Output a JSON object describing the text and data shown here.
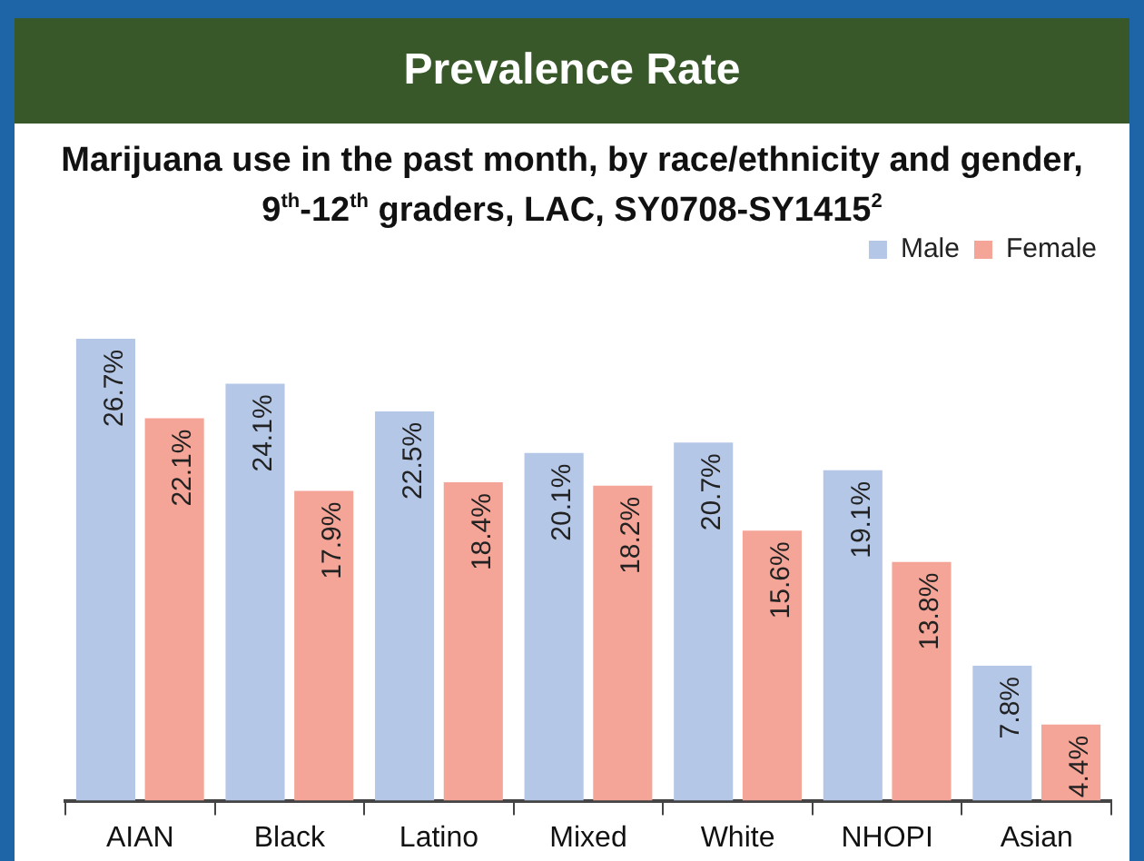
{
  "chart_data": {
    "type": "bar",
    "title": "Prevalence Rate",
    "subtitle": "Marijuana use in the past month, by race/ethnicity and gender, 9$^{th}$-12$^{th}$ graders, LAC, SY0708-SY1415$^{2}$",
    "categories": [
      "AIAN",
      "Black",
      "Latino",
      "Mixed",
      "White",
      "NHOPI",
      "Asian"
    ],
    "series": [
      {
        "name": "Male",
        "color": "#b4c7e7",
        "values": [
          26.7,
          24.1,
          22.5,
          20.1,
          20.7,
          19.1,
          7.8
        ],
        "value_labels": [
          "26.7%",
          "24.1%",
          "22.5%",
          "20.1%",
          "20.7%",
          "19.1%",
          "7.8%"
        ]
      },
      {
        "name": "Female",
        "color": "#f4a597",
        "values": [
          22.1,
          17.9,
          18.4,
          18.2,
          15.6,
          13.8,
          4.4
        ],
        "value_labels": [
          "22.1%",
          "17.9%",
          "18.4%",
          "18.2%",
          "15.6%",
          "13.8%",
          "4.4%"
        ]
      }
    ],
    "legend": "top right",
    "grid": false
  }
}
